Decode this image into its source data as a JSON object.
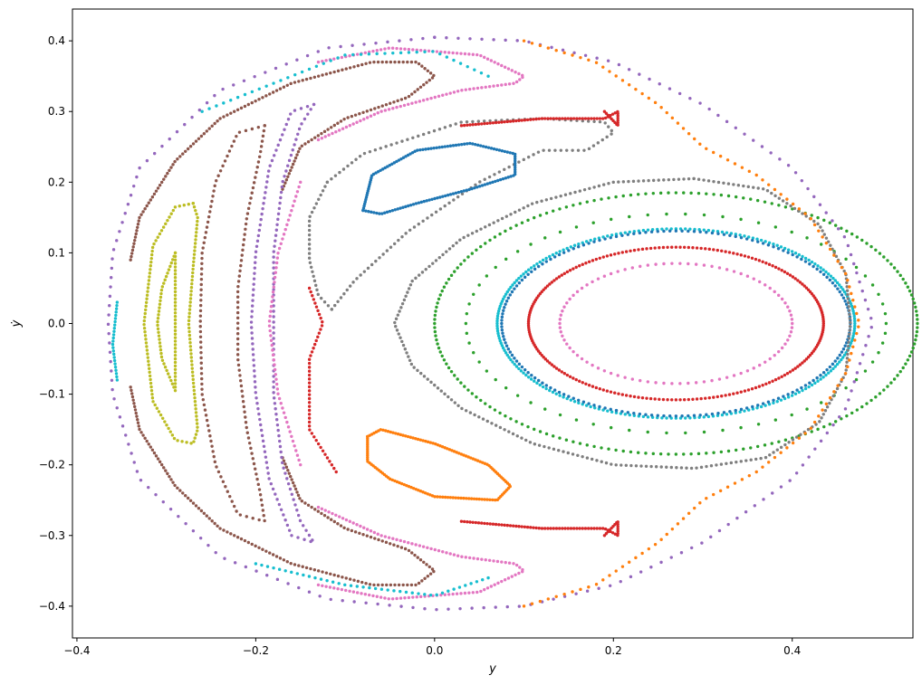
{
  "chart_data": {
    "type": "scatter",
    "title": "",
    "xlabel": "y",
    "ylabel": "ẏ",
    "xlim": [
      -0.405,
      0.535
    ],
    "ylim": [
      -0.445,
      0.445
    ],
    "xticks": [
      -0.4,
      -0.2,
      0.0,
      0.2,
      0.4
    ],
    "xtick_labels": [
      "−0.4",
      "−0.2",
      "0.0",
      "0.2",
      "0.4"
    ],
    "yticks": [
      -0.4,
      -0.3,
      -0.2,
      -0.1,
      0.0,
      0.1,
      0.2,
      0.3,
      0.4
    ],
    "ytick_labels": [
      "−0.4",
      "−0.3",
      "−0.2",
      "−0.1",
      "0.0",
      "0.1",
      "0.2",
      "0.3",
      "0.4"
    ],
    "grid": false,
    "legend": "none",
    "series": [
      {
        "color": "#d62728",
        "kind": "ellipse",
        "cx": 0.27,
        "cy": 0.0,
        "rx": 0.165,
        "ry": 0.108,
        "n": 220
      },
      {
        "color": "#e377c2",
        "kind": "ellipse",
        "cx": 0.27,
        "cy": 0.0,
        "rx": 0.13,
        "ry": 0.085,
        "n": 90
      },
      {
        "color": "#17becf",
        "kind": "ellipse",
        "cx": 0.27,
        "cy": 0.0,
        "rx": 0.2,
        "ry": 0.134,
        "n": 240
      },
      {
        "color": "#1f77b4",
        "kind": "ellipse",
        "cx": 0.27,
        "cy": 0.0,
        "rx": 0.195,
        "ry": 0.131,
        "n": 180
      },
      {
        "color": "#2ca02c",
        "kind": "ellipse",
        "cx": 0.27,
        "cy": 0.0,
        "rx": 0.235,
        "ry": 0.155,
        "n": 70
      },
      {
        "color": "#2ca02c",
        "kind": "ellipse",
        "cx": 0.27,
        "cy": 0.0,
        "rx": 0.27,
        "ry": 0.185,
        "n": 200
      },
      {
        "color": "#7f7f7f",
        "kind": "path",
        "n": 260,
        "points": [
          [
            0.29,
            0.205
          ],
          [
            0.37,
            0.19
          ],
          [
            0.43,
            0.14
          ],
          [
            0.46,
            0.07
          ],
          [
            0.465,
            0.0
          ],
          [
            0.46,
            -0.07
          ],
          [
            0.43,
            -0.14
          ],
          [
            0.37,
            -0.19
          ],
          [
            0.29,
            -0.205
          ],
          [
            0.2,
            -0.2
          ],
          [
            0.11,
            -0.17
          ],
          [
            0.03,
            -0.12
          ],
          [
            -0.025,
            -0.06
          ],
          [
            -0.045,
            0.0
          ],
          [
            -0.025,
            0.06
          ],
          [
            0.03,
            0.12
          ],
          [
            0.11,
            0.17
          ],
          [
            0.2,
            0.2
          ],
          [
            0.29,
            0.205
          ]
        ]
      },
      {
        "color": "#7f7f7f",
        "kind": "path",
        "n": 120,
        "points": [
          [
            -0.115,
            0.02
          ],
          [
            -0.09,
            0.06
          ],
          [
            -0.03,
            0.13
          ],
          [
            0.05,
            0.2
          ],
          [
            0.12,
            0.245
          ],
          [
            0.17,
            0.245
          ],
          [
            0.2,
            0.27
          ],
          [
            0.19,
            0.285
          ],
          [
            0.12,
            0.29
          ],
          [
            0.03,
            0.285
          ],
          [
            -0.08,
            0.24
          ],
          [
            -0.12,
            0.2
          ]
        ]
      },
      {
        "color": "#7f7f7f",
        "kind": "path",
        "n": 30,
        "points": [
          [
            -0.12,
            0.2
          ],
          [
            -0.14,
            0.15
          ],
          [
            -0.14,
            0.09
          ],
          [
            -0.13,
            0.04
          ],
          [
            -0.115,
            0.02
          ]
        ]
      },
      {
        "color": "#1f77b4",
        "kind": "path",
        "n": 140,
        "points": [
          [
            -0.08,
            0.16
          ],
          [
            -0.07,
            0.21
          ],
          [
            -0.02,
            0.245
          ],
          [
            0.04,
            0.255
          ],
          [
            0.09,
            0.24
          ],
          [
            0.09,
            0.21
          ],
          [
            0.04,
            0.19
          ],
          [
            -0.02,
            0.17
          ],
          [
            -0.06,
            0.155
          ],
          [
            -0.08,
            0.16
          ]
        ]
      },
      {
        "color": "#ff7f0e",
        "kind": "path",
        "n": 140,
        "points": [
          [
            -0.075,
            -0.16
          ],
          [
            -0.06,
            -0.15
          ],
          [
            0.0,
            -0.17
          ],
          [
            0.06,
            -0.2
          ],
          [
            0.085,
            -0.23
          ],
          [
            0.07,
            -0.25
          ],
          [
            0.0,
            -0.245
          ],
          [
            -0.05,
            -0.22
          ],
          [
            -0.075,
            -0.195
          ],
          [
            -0.075,
            -0.16
          ]
        ]
      },
      {
        "color": "#bcbd22",
        "kind": "path",
        "n": 140,
        "points": [
          [
            -0.27,
            0.17
          ],
          [
            -0.29,
            0.165
          ],
          [
            -0.315,
            0.11
          ],
          [
            -0.325,
            0.0
          ],
          [
            -0.315,
            -0.11
          ],
          [
            -0.29,
            -0.165
          ],
          [
            -0.27,
            -0.17
          ],
          [
            -0.265,
            -0.15
          ],
          [
            -0.27,
            -0.08
          ],
          [
            -0.275,
            0.0
          ],
          [
            -0.27,
            0.08
          ],
          [
            -0.265,
            0.15
          ],
          [
            -0.27,
            0.17
          ]
        ]
      },
      {
        "color": "#bcbd22",
        "kind": "path",
        "n": 80,
        "points": [
          [
            -0.29,
            0.1
          ],
          [
            -0.305,
            0.05
          ],
          [
            -0.31,
            0.0
          ],
          [
            -0.305,
            -0.05
          ],
          [
            -0.29,
            -0.095
          ],
          [
            -0.29,
            0.0
          ],
          [
            -0.29,
            0.1
          ]
        ]
      },
      {
        "color": "#8c564b",
        "kind": "path",
        "n": 160,
        "points": [
          [
            -0.19,
            0.28
          ],
          [
            -0.22,
            0.27
          ],
          [
            -0.245,
            0.2
          ],
          [
            -0.26,
            0.1
          ],
          [
            -0.262,
            0.0
          ],
          [
            -0.26,
            -0.1
          ],
          [
            -0.245,
            -0.2
          ],
          [
            -0.22,
            -0.27
          ],
          [
            -0.19,
            -0.28
          ],
          [
            -0.195,
            -0.24
          ],
          [
            -0.21,
            -0.15
          ],
          [
            -0.22,
            -0.05
          ],
          [
            -0.22,
            0.05
          ],
          [
            -0.21,
            0.15
          ],
          [
            -0.195,
            0.24
          ],
          [
            -0.19,
            0.28
          ]
        ]
      },
      {
        "color": "#8c564b",
        "kind": "path",
        "n": 160,
        "points": [
          [
            -0.34,
            0.09
          ],
          [
            -0.33,
            0.15
          ],
          [
            -0.29,
            0.23
          ],
          [
            -0.24,
            0.29
          ],
          [
            -0.16,
            0.34
          ],
          [
            -0.07,
            0.37
          ],
          [
            -0.02,
            0.37
          ],
          [
            0.0,
            0.35
          ],
          [
            -0.03,
            0.32
          ],
          [
            -0.1,
            0.29
          ],
          [
            -0.15,
            0.25
          ],
          [
            -0.17,
            0.19
          ]
        ]
      },
      {
        "color": "#8c564b",
        "kind": "path",
        "n": 160,
        "points": [
          [
            -0.34,
            -0.09
          ],
          [
            -0.33,
            -0.15
          ],
          [
            -0.29,
            -0.23
          ],
          [
            -0.24,
            -0.29
          ],
          [
            -0.16,
            -0.34
          ],
          [
            -0.07,
            -0.37
          ],
          [
            -0.02,
            -0.37
          ],
          [
            0.0,
            -0.35
          ],
          [
            -0.03,
            -0.32
          ],
          [
            -0.1,
            -0.29
          ],
          [
            -0.15,
            -0.25
          ],
          [
            -0.17,
            -0.19
          ]
        ]
      },
      {
        "color": "#9467bd",
        "kind": "path",
        "n": 170,
        "points": [
          [
            -0.135,
            0.31
          ],
          [
            -0.16,
            0.3
          ],
          [
            -0.185,
            0.22
          ],
          [
            -0.2,
            0.1
          ],
          [
            -0.205,
            0.0
          ],
          [
            -0.2,
            -0.1
          ],
          [
            -0.185,
            -0.22
          ],
          [
            -0.16,
            -0.3
          ],
          [
            -0.135,
            -0.31
          ],
          [
            -0.15,
            -0.28
          ],
          [
            -0.17,
            -0.2
          ],
          [
            -0.18,
            -0.1
          ],
          [
            -0.18,
            0.0
          ],
          [
            -0.18,
            0.1
          ],
          [
            -0.17,
            0.2
          ],
          [
            -0.15,
            0.28
          ],
          [
            -0.135,
            0.31
          ]
        ]
      },
      {
        "color": "#e377c2",
        "kind": "path",
        "n": 110,
        "points": [
          [
            -0.13,
            0.26
          ],
          [
            -0.06,
            0.3
          ],
          [
            0.03,
            0.33
          ],
          [
            0.09,
            0.34
          ],
          [
            0.1,
            0.35
          ],
          [
            0.05,
            0.38
          ],
          [
            -0.05,
            0.39
          ],
          [
            -0.13,
            0.37
          ]
        ]
      },
      {
        "color": "#e377c2",
        "kind": "path",
        "n": 110,
        "points": [
          [
            -0.13,
            -0.26
          ],
          [
            -0.06,
            -0.3
          ],
          [
            0.03,
            -0.33
          ],
          [
            0.09,
            -0.34
          ],
          [
            0.1,
            -0.35
          ],
          [
            0.05,
            -0.38
          ],
          [
            -0.05,
            -0.39
          ],
          [
            -0.13,
            -0.37
          ]
        ]
      },
      {
        "color": "#e377c2",
        "kind": "path",
        "n": 60,
        "points": [
          [
            -0.15,
            0.2
          ],
          [
            -0.175,
            0.1
          ],
          [
            -0.185,
            0.0
          ],
          [
            -0.175,
            -0.1
          ],
          [
            -0.15,
            -0.2
          ]
        ]
      },
      {
        "color": "#9467bd",
        "kind": "path",
        "n": 200,
        "points": [
          [
            0.0,
            0.405
          ],
          [
            0.1,
            0.4
          ],
          [
            0.2,
            0.37
          ],
          [
            0.3,
            0.31
          ],
          [
            0.4,
            0.22
          ],
          [
            0.46,
            0.12
          ],
          [
            0.49,
            0.0
          ],
          [
            0.46,
            -0.12
          ],
          [
            0.4,
            -0.22
          ],
          [
            0.3,
            -0.31
          ],
          [
            0.2,
            -0.37
          ],
          [
            0.1,
            -0.4
          ],
          [
            0.0,
            -0.405
          ],
          [
            -0.12,
            -0.39
          ],
          [
            -0.24,
            -0.33
          ],
          [
            -0.33,
            -0.22
          ],
          [
            -0.36,
            -0.1
          ],
          [
            -0.365,
            0.0
          ],
          [
            -0.36,
            0.1
          ],
          [
            -0.33,
            0.22
          ],
          [
            -0.24,
            0.33
          ],
          [
            -0.12,
            0.39
          ],
          [
            0.0,
            0.405
          ]
        ]
      },
      {
        "color": "#ff7f0e",
        "kind": "path",
        "n": 120,
        "points": [
          [
            0.1,
            0.4
          ],
          [
            0.18,
            0.37
          ],
          [
            0.25,
            0.31
          ],
          [
            0.3,
            0.25
          ],
          [
            0.36,
            0.21
          ],
          [
            0.42,
            0.15
          ],
          [
            0.46,
            0.07
          ],
          [
            0.475,
            0.0
          ],
          [
            0.46,
            -0.07
          ],
          [
            0.42,
            -0.15
          ],
          [
            0.36,
            -0.21
          ],
          [
            0.3,
            -0.25
          ],
          [
            0.25,
            -0.31
          ],
          [
            0.18,
            -0.37
          ],
          [
            0.1,
            -0.4
          ]
        ]
      },
      {
        "color": "#d62728",
        "kind": "path",
        "n": 70,
        "points": [
          [
            0.03,
            0.28
          ],
          [
            0.12,
            0.29
          ],
          [
            0.19,
            0.29
          ],
          [
            0.205,
            0.3
          ],
          [
            0.205,
            0.28
          ],
          [
            0.19,
            0.3
          ]
        ]
      },
      {
        "color": "#d62728",
        "kind": "path",
        "n": 70,
        "points": [
          [
            0.03,
            -0.28
          ],
          [
            0.12,
            -0.29
          ],
          [
            0.19,
            -0.29
          ],
          [
            0.205,
            -0.3
          ],
          [
            0.205,
            -0.28
          ],
          [
            0.19,
            -0.3
          ]
        ]
      },
      {
        "color": "#d62728",
        "kind": "path",
        "n": 50,
        "points": [
          [
            -0.14,
            0.05
          ],
          [
            -0.125,
            0.0
          ],
          [
            -0.14,
            -0.05
          ],
          [
            -0.14,
            -0.15
          ],
          [
            -0.11,
            -0.21
          ]
        ]
      },
      {
        "color": "#17becf",
        "kind": "path",
        "n": 40,
        "points": [
          [
            -0.26,
            0.3
          ],
          [
            -0.2,
            0.33
          ],
          [
            -0.1,
            0.38
          ],
          [
            0.0,
            0.385
          ],
          [
            0.06,
            0.35
          ]
        ]
      },
      {
        "color": "#17becf",
        "kind": "path",
        "n": 40,
        "points": [
          [
            -0.2,
            -0.34
          ],
          [
            -0.1,
            -0.37
          ],
          [
            0.0,
            -0.385
          ],
          [
            0.06,
            -0.36
          ]
        ]
      },
      {
        "color": "#17becf",
        "kind": "path",
        "n": 25,
        "points": [
          [
            -0.355,
            0.03
          ],
          [
            -0.36,
            -0.03
          ],
          [
            -0.355,
            -0.08
          ]
        ]
      }
    ]
  }
}
